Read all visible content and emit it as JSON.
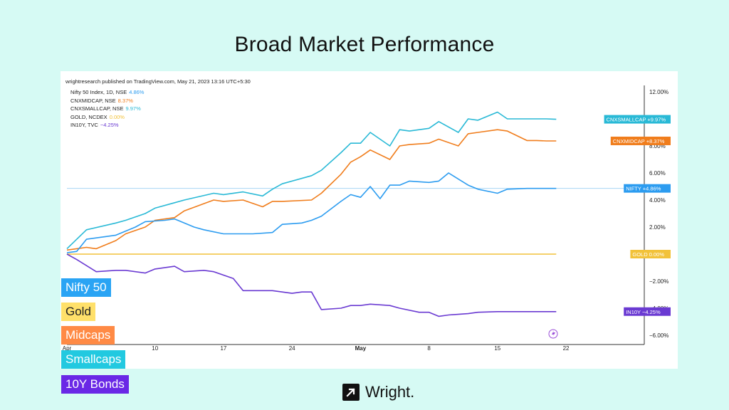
{
  "title": "Broad Market Performance",
  "publisher": "wrightresearch published on TradingView.com, May 21, 2023 13:16 UTC+5:30",
  "legend": [
    {
      "label": "Nifty 50 Index, 1D, NSE",
      "value": "4.86%",
      "color": "#2c9cf0"
    },
    {
      "label": "CNXMIDCAP, NSE",
      "value": "8.37%",
      "color": "#f07d1c"
    },
    {
      "label": "CNXSMALLCAP, NSE",
      "value": "9.97%",
      "color": "#29b9d6"
    },
    {
      "label": "GOLD, NCDEX",
      "value": "0.00%",
      "color": "#f2c23a"
    },
    {
      "label": "IN10Y, TVC",
      "value": "−4.25%",
      "color": "#6a3ad2"
    }
  ],
  "badges": [
    {
      "label": "Nifty 50",
      "color": "#2aa4f4",
      "text_color": "#ffffff"
    },
    {
      "label": "Gold",
      "color": "#ffe06a",
      "text_color": "#222222"
    },
    {
      "label": "Midcaps",
      "color": "#ff8a45",
      "text_color": "#ffffff"
    },
    {
      "label": "Smallcaps",
      "color": "#22c9e0",
      "text_color": "#ffffff"
    },
    {
      "label": "10Y Bonds",
      "color": "#6a28e6",
      "text_color": "#ffffff"
    }
  ],
  "brand": {
    "name": "Wright."
  },
  "chart_data": {
    "type": "line",
    "y_unit": "%",
    "ylim": [
      -6.5,
      12.5
    ],
    "y_ticks": [
      "12.00%",
      "8.00%",
      "6.00%",
      "4.00%",
      "2.00%",
      "−2.00%",
      "−4.00%",
      "−6.00%"
    ],
    "y_tick_values": [
      12,
      8,
      6,
      4,
      2,
      -2,
      -4,
      -6
    ],
    "x_ticks": [
      "Apr",
      "10",
      "17",
      "24",
      "May",
      "8",
      "15",
      "22"
    ],
    "x_tick_days": [
      0,
      9,
      16,
      23,
      30,
      37,
      44,
      51
    ],
    "xlim": [
      0,
      59
    ],
    "grid": false,
    "series": [
      {
        "name": "CNXSMALLCAP",
        "color": "#29b9d6",
        "end_label": "CNXSMALLCAP",
        "end_value": "+9.97%",
        "x": [
          0,
          2,
          5,
          6,
          8,
          9,
          11,
          12,
          15,
          16,
          18,
          20,
          21,
          22,
          25,
          26,
          28,
          29,
          30,
          31,
          33,
          34,
          35,
          37,
          38,
          40,
          41,
          42,
          44,
          45,
          47,
          48,
          49,
          50
        ],
        "y": [
          0.4,
          1.8,
          2.3,
          2.5,
          3.0,
          3.4,
          3.8,
          4.0,
          4.5,
          4.4,
          4.6,
          4.3,
          4.8,
          5.2,
          5.8,
          6.2,
          7.5,
          8.2,
          8.2,
          9.0,
          8.0,
          9.2,
          9.1,
          9.3,
          9.8,
          9.0,
          10.0,
          9.9,
          10.5,
          10.0,
          10.0,
          10.0,
          10.0,
          9.97
        ]
      },
      {
        "name": "CNXMIDCAP",
        "color": "#f07d1c",
        "end_label": "CNXMIDCAP",
        "end_value": "+8.37%",
        "x": [
          0,
          1,
          2,
          3,
          5,
          6,
          8,
          9,
          11,
          12,
          15,
          16,
          18,
          20,
          21,
          22,
          25,
          26,
          28,
          29,
          30,
          31,
          33,
          34,
          35,
          37,
          38,
          40,
          41,
          42,
          44,
          45,
          47,
          48,
          49,
          50
        ],
        "y": [
          0.3,
          0.4,
          0.5,
          0.4,
          1.0,
          1.5,
          2.0,
          2.5,
          2.7,
          3.2,
          4.0,
          3.9,
          4.0,
          3.5,
          3.9,
          3.9,
          4.0,
          4.5,
          5.9,
          6.8,
          7.2,
          7.7,
          7.0,
          8.0,
          8.1,
          8.2,
          8.5,
          8.0,
          8.9,
          9.0,
          9.2,
          9.1,
          8.4,
          8.4,
          8.37,
          8.37
        ]
      },
      {
        "name": "NIFTY",
        "color": "#2c9cf0",
        "end_label": "NIFTY",
        "end_value": "+4.86%",
        "x": [
          0,
          1,
          2,
          4,
          5,
          7,
          8,
          10,
          11,
          13,
          14,
          16,
          17,
          19,
          21,
          22,
          24,
          25,
          26,
          28,
          29,
          30,
          31,
          32,
          33,
          34,
          35,
          37,
          38,
          39,
          41,
          42,
          44,
          45,
          47,
          48,
          49,
          50
        ],
        "y": [
          0.1,
          0.2,
          1.1,
          1.3,
          1.4,
          2.0,
          2.4,
          2.5,
          2.6,
          2.0,
          1.8,
          1.5,
          1.5,
          1.5,
          1.6,
          2.2,
          2.3,
          2.5,
          2.8,
          3.9,
          4.4,
          4.2,
          5.0,
          4.1,
          5.1,
          5.1,
          5.4,
          5.3,
          5.4,
          6.0,
          5.1,
          4.8,
          4.5,
          4.8,
          4.86,
          4.86,
          4.86,
          4.86
        ]
      },
      {
        "name": "GOLD",
        "color": "#f2c23a",
        "end_label": "GOLD",
        "end_value": "0.00%",
        "x": [
          0,
          50
        ],
        "y": [
          0,
          0
        ]
      },
      {
        "name": "IN10Y",
        "color": "#6a3ad2",
        "end_label": "IN10Y",
        "end_value": "−4.25%",
        "x": [
          0,
          1,
          3,
          5,
          6,
          8,
          9,
          11,
          12,
          14,
          15,
          17,
          18,
          20,
          21,
          23,
          24,
          25,
          26,
          28,
          29,
          30,
          31,
          33,
          34,
          36,
          37,
          38,
          39,
          41,
          42,
          44,
          45,
          47,
          48,
          49,
          50
        ],
        "y": [
          0,
          -0.4,
          -1.3,
          -1.2,
          -1.2,
          -1.4,
          -1.1,
          -0.9,
          -1.3,
          -1.2,
          -1.3,
          -1.8,
          -2.7,
          -2.7,
          -2.7,
          -2.9,
          -2.8,
          -2.8,
          -4.1,
          -4.0,
          -3.8,
          -3.8,
          -3.7,
          -3.8,
          -4.0,
          -4.3,
          -4.3,
          -4.6,
          -4.5,
          -4.4,
          -4.3,
          -4.25,
          -4.25,
          -4.25,
          -4.25,
          -4.25,
          -4.25
        ]
      }
    ]
  }
}
